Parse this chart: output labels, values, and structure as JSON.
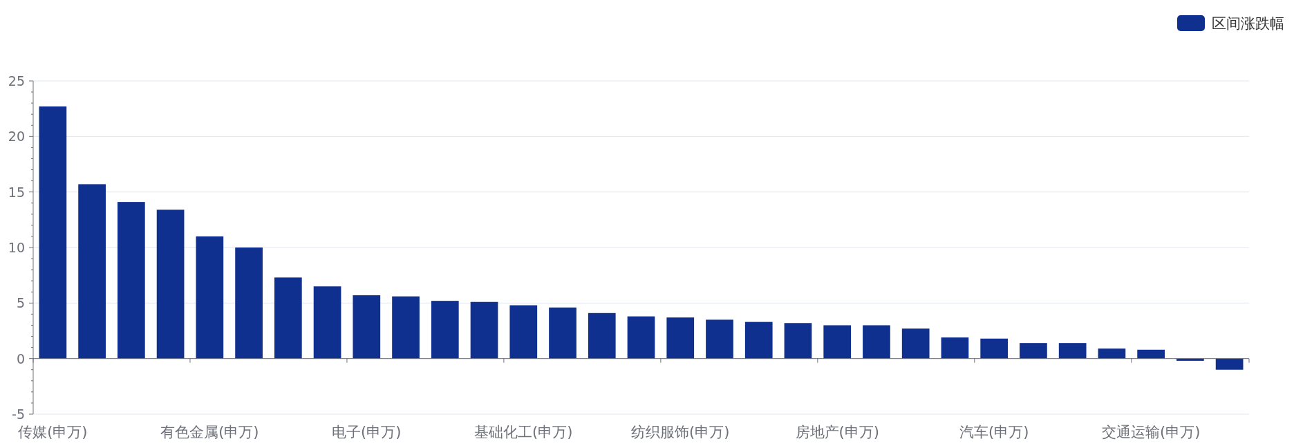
{
  "chart_data": {
    "type": "bar",
    "categories": [
      "传媒(申万)",
      null,
      null,
      null,
      "有色金属(申万)",
      null,
      null,
      null,
      "电子(申万)",
      null,
      null,
      null,
      "基础化工(申万)",
      null,
      null,
      null,
      "纺织服饰(申万)",
      null,
      null,
      null,
      "房地产(申万)",
      null,
      null,
      null,
      "汽车(申万)",
      null,
      null,
      null,
      "交通运输(申万)",
      null,
      null
    ],
    "series": [
      {
        "name": "区间涨跌幅",
        "color": "#10308f",
        "values": [
          22.7,
          15.7,
          14.1,
          13.4,
          11.0,
          10.0,
          7.3,
          6.5,
          5.7,
          5.6,
          5.2,
          5.1,
          4.8,
          4.6,
          4.1,
          3.8,
          3.7,
          3.5,
          3.3,
          3.2,
          3.0,
          3.0,
          2.7,
          1.9,
          1.8,
          1.4,
          1.4,
          0.9,
          0.8,
          -0.2,
          -1.0
        ]
      }
    ],
    "ylim": [
      -5,
      25
    ],
    "yticks": [
      -5,
      0,
      5,
      10,
      15,
      20,
      25
    ],
    "grid": "y",
    "legend": "top right"
  }
}
